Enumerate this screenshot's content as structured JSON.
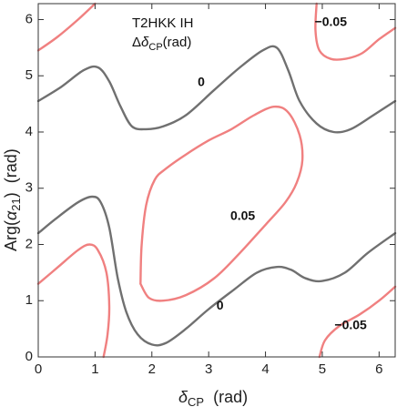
{
  "chart_data": {
    "type": "contour",
    "annotation": {
      "line1": "T2HKK IH",
      "line2_prefix": "Δ",
      "line2_symbol": "δ",
      "line2_sub": "CP",
      "line2_suffix": "(rad)"
    },
    "xlabel": {
      "symbol": "δ",
      "sub": "CP",
      "unit": "(rad)"
    },
    "ylabel": {
      "prefix": "Arg(",
      "symbol": "α",
      "sub": "21",
      "suffix": ")",
      "unit": "(rad)"
    },
    "xlim": [
      0,
      6.283
    ],
    "ylim": [
      0,
      6.283
    ],
    "xticks": [
      0,
      1,
      2,
      3,
      4,
      5,
      6
    ],
    "yticks": [
      0,
      1,
      2,
      3,
      4,
      5,
      6
    ],
    "colors": {
      "zero": "#707070",
      "pos": "#f08080",
      "neg": "#f08080",
      "frame": "#333333"
    },
    "contours": [
      {
        "level": 0,
        "color_key": "zero",
        "points": [
          [
            0,
            4.55
          ],
          [
            0.4,
            4.8
          ],
          [
            0.8,
            5.1
          ],
          [
            1.05,
            5.15
          ],
          [
            1.25,
            4.9
          ],
          [
            1.45,
            4.45
          ],
          [
            1.65,
            4.1
          ],
          [
            1.9,
            4.05
          ],
          [
            2.2,
            4.1
          ],
          [
            2.6,
            4.3
          ],
          [
            3.1,
            4.75
          ],
          [
            3.55,
            5.15
          ],
          [
            3.95,
            5.45
          ],
          [
            4.2,
            5.5
          ],
          [
            4.4,
            5.1
          ],
          [
            4.6,
            4.55
          ],
          [
            4.9,
            4.15
          ],
          [
            5.2,
            4.0
          ],
          [
            5.5,
            4.05
          ],
          [
            5.9,
            4.3
          ],
          [
            6.283,
            4.55
          ]
        ]
      },
      {
        "level": 0,
        "color_key": "zero",
        "points": [
          [
            0,
            2.2
          ],
          [
            0.3,
            2.45
          ],
          [
            0.7,
            2.75
          ],
          [
            0.95,
            2.85
          ],
          [
            1.1,
            2.75
          ],
          [
            1.25,
            2.3
          ],
          [
            1.4,
            1.4
          ],
          [
            1.55,
            0.8
          ],
          [
            1.75,
            0.4
          ],
          [
            2.0,
            0.22
          ],
          [
            2.25,
            0.25
          ],
          [
            2.6,
            0.5
          ],
          [
            3.0,
            0.85
          ],
          [
            3.45,
            1.2
          ],
          [
            3.85,
            1.5
          ],
          [
            4.2,
            1.6
          ],
          [
            4.45,
            1.55
          ],
          [
            4.7,
            1.4
          ],
          [
            5.0,
            1.35
          ],
          [
            5.4,
            1.5
          ],
          [
            5.8,
            1.85
          ],
          [
            6.283,
            2.2
          ]
        ]
      },
      {
        "level": 0.05,
        "color_key": "pos",
        "points": [
          [
            1.8,
            1.3
          ],
          [
            1.95,
            1.05
          ],
          [
            2.2,
            1.0
          ],
          [
            2.6,
            1.1
          ],
          [
            3.1,
            1.4
          ],
          [
            3.55,
            1.85
          ],
          [
            4.0,
            2.35
          ],
          [
            4.35,
            2.75
          ],
          [
            4.55,
            3.1
          ],
          [
            4.65,
            3.5
          ],
          [
            4.6,
            3.95
          ],
          [
            4.4,
            4.35
          ],
          [
            4.15,
            4.45
          ],
          [
            3.8,
            4.3
          ],
          [
            3.4,
            4.05
          ],
          [
            3.0,
            3.85
          ],
          [
            2.6,
            3.6
          ],
          [
            2.25,
            3.35
          ],
          [
            2.05,
            3.15
          ],
          [
            1.9,
            2.7
          ],
          [
            1.82,
            2.0
          ],
          [
            1.8,
            1.3
          ]
        ]
      },
      {
        "level": 0.05,
        "color_key": "pos",
        "points": [
          [
            0,
            5.45
          ],
          [
            0.35,
            5.7
          ],
          [
            0.7,
            6.0
          ],
          [
            1.0,
            6.283
          ]
        ]
      },
      {
        "level": 0.05,
        "color_key": "pos",
        "points": [
          [
            0,
            1.3
          ],
          [
            0.35,
            1.6
          ],
          [
            0.7,
            1.9
          ],
          [
            0.9,
            2.0
          ],
          [
            1.05,
            1.9
          ],
          [
            1.2,
            1.5
          ],
          [
            1.25,
            0.9
          ],
          [
            1.22,
            0.4
          ],
          [
            1.15,
            0
          ]
        ]
      },
      {
        "level": -0.05,
        "color_key": "neg",
        "points": [
          [
            4.9,
            6.283
          ],
          [
            4.88,
            5.8
          ],
          [
            4.95,
            5.45
          ],
          [
            5.15,
            5.3
          ],
          [
            5.4,
            5.3
          ],
          [
            5.7,
            5.4
          ],
          [
            6.0,
            5.65
          ],
          [
            6.283,
            5.85
          ]
        ]
      },
      {
        "level": -0.05,
        "color_key": "neg",
        "points": [
          [
            4.95,
            0
          ],
          [
            5.05,
            0.3
          ],
          [
            5.3,
            0.55
          ],
          [
            5.65,
            0.75
          ],
          [
            6.0,
            1.0
          ],
          [
            6.283,
            1.25
          ]
        ]
      }
    ],
    "labels": [
      {
        "text": "0",
        "x": 2.87,
        "y": 4.88
      },
      {
        "text": "0.05",
        "x": 3.6,
        "y": 2.5
      },
      {
        "text": "0",
        "x": 3.2,
        "y": 0.9
      },
      {
        "text": "−0.05",
        "x": 5.15,
        "y": 5.95
      },
      {
        "text": "−0.05",
        "x": 5.5,
        "y": 0.55
      }
    ]
  }
}
